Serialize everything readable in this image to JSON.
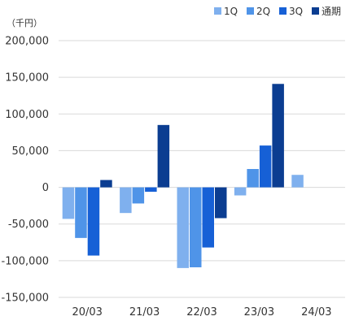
{
  "chart_data": {
    "type": "bar",
    "unit_label": "（千円）",
    "categories": [
      "20/03",
      "21/03",
      "22/03",
      "23/03",
      "24/03"
    ],
    "series": [
      {
        "name": "1Q",
        "color": "#7fb0ee",
        "values": [
          -43000,
          -35000,
          -110000,
          -11000,
          17000
        ]
      },
      {
        "name": "2Q",
        "color": "#4f94e8",
        "values": [
          -69000,
          -22000,
          -109000,
          25000,
          null
        ]
      },
      {
        "name": "3Q",
        "color": "#1660d6",
        "values": [
          -93000,
          -6000,
          -82000,
          57000,
          null
        ]
      },
      {
        "name": "通期",
        "color": "#0b3d91",
        "values": [
          10000,
          85000,
          -42000,
          141000,
          null
        ]
      }
    ],
    "yticks": [
      "200,000",
      "150,000",
      "100,000",
      "50,000",
      "0",
      "-50,000",
      "-100,000",
      "-150,000"
    ],
    "ylim": [
      -150000,
      200000
    ],
    "grid": true,
    "legend": "top-right"
  }
}
